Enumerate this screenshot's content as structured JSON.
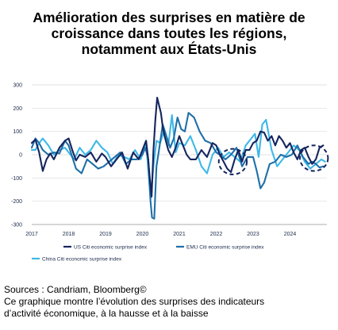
{
  "title_lines": [
    "Amélioration des surprises en matière de",
    "croissance dans toutes les régions,",
    "notamment aux États-Unis"
  ],
  "footer": {
    "sources": "Sources : Candriam, Bloomberg©",
    "note_line1": "Ce graphique montre l’évolution des surprises des indicateurs",
    "note_line2": "d’activité économique, à la hausse et à la baisse"
  },
  "colors": {
    "us": "#15255e",
    "emu": "#1f6fa8",
    "china": "#3eb8e8",
    "grid": "#d9d9d9",
    "axis_text": "#1a2a4a"
  },
  "chart_data": {
    "type": "line",
    "title": "",
    "xlabel": "",
    "ylabel": "",
    "ylim": [
      -300,
      300
    ],
    "yticks": [
      -300,
      -200,
      -100,
      0,
      100,
      200,
      300
    ],
    "xlim": [
      2017.0,
      2025.0
    ],
    "xticks": [
      2017,
      2018,
      2019,
      2020,
      2021,
      2022,
      2023,
      2024
    ],
    "grid": "horizontal",
    "legend_position": "bottom",
    "annotations": [
      {
        "shape": "dashed-circle",
        "center": [
          2022.45,
          -30
        ],
        "radius_x": 0.38,
        "radius_y": 55
      },
      {
        "shape": "dashed-circle",
        "center": [
          2024.65,
          -15
        ],
        "radius_x": 0.38,
        "radius_y": 55
      }
    ],
    "series": [
      {
        "name": "US Citi economic surprise index",
        "color_key": "us",
        "x": [
          2017.0,
          2017.1,
          2017.2,
          2017.3,
          2017.4,
          2017.5,
          2017.6,
          2017.75,
          2017.9,
          2018.0,
          2018.1,
          2018.2,
          2018.3,
          2018.45,
          2018.6,
          2018.75,
          2018.9,
          2019.0,
          2019.15,
          2019.3,
          2019.45,
          2019.6,
          2019.75,
          2019.9,
          2020.0,
          2020.1,
          2020.15,
          2020.2,
          2020.25,
          2020.3,
          2020.35,
          2020.4,
          2020.5,
          2020.55,
          2020.6,
          2020.7,
          2020.8,
          2020.9,
          2021.0,
          2021.1,
          2021.2,
          2021.3,
          2021.45,
          2021.6,
          2021.75,
          2021.9,
          2022.0,
          2022.1,
          2022.2,
          2022.3,
          2022.4,
          2022.5,
          2022.6,
          2022.7,
          2022.8,
          2022.9,
          2023.0,
          2023.1,
          2023.2,
          2023.3,
          2023.4,
          2023.5,
          2023.6,
          2023.7,
          2023.8,
          2023.9,
          2024.0,
          2024.1,
          2024.2,
          2024.3,
          2024.4,
          2024.5,
          2024.6,
          2024.7,
          2024.8,
          2024.9
        ],
        "y": [
          50,
          65,
          10,
          -70,
          -20,
          5,
          -20,
          30,
          60,
          70,
          20,
          -25,
          0,
          -10,
          10,
          -30,
          5,
          -10,
          -50,
          -20,
          10,
          -60,
          10,
          -20,
          20,
          60,
          -10,
          -100,
          -180,
          20,
          150,
          245,
          180,
          120,
          80,
          20,
          -10,
          30,
          80,
          40,
          0,
          -20,
          -20,
          20,
          -10,
          50,
          40,
          0,
          -30,
          -60,
          -75,
          -20,
          20,
          -30,
          20,
          20,
          50,
          60,
          100,
          95,
          60,
          80,
          40,
          80,
          60,
          30,
          50,
          10,
          -20,
          20,
          30,
          -10,
          -40,
          -20,
          30,
          40
        ]
      },
      {
        "name": "EMU Citi economic surprise index",
        "color_key": "emu",
        "x": [
          2017.0,
          2017.1,
          2017.2,
          2017.3,
          2017.45,
          2017.6,
          2017.75,
          2017.9,
          2018.0,
          2018.1,
          2018.2,
          2018.35,
          2018.5,
          2018.65,
          2018.8,
          2018.95,
          2019.1,
          2019.25,
          2019.4,
          2019.55,
          2019.7,
          2019.85,
          2020.0,
          2020.08,
          2020.16,
          2020.22,
          2020.26,
          2020.32,
          2020.38,
          2020.45,
          2020.55,
          2020.65,
          2020.75,
          2020.85,
          2020.95,
          2021.05,
          2021.15,
          2021.25,
          2021.4,
          2021.55,
          2021.7,
          2021.85,
          2022.0,
          2022.1,
          2022.25,
          2022.4,
          2022.55,
          2022.7,
          2022.85,
          2023.0,
          2023.1,
          2023.2,
          2023.3,
          2023.45,
          2023.6,
          2023.75,
          2023.9,
          2024.05,
          2024.2,
          2024.35,
          2024.5,
          2024.6,
          2024.7,
          2024.8,
          2024.9
        ],
        "y": [
          30,
          70,
          50,
          20,
          0,
          10,
          5,
          60,
          40,
          -10,
          -60,
          -80,
          -20,
          -40,
          -60,
          -50,
          -30,
          -10,
          10,
          -40,
          -20,
          -20,
          0,
          30,
          -20,
          -200,
          -270,
          -275,
          -50,
          20,
          130,
          80,
          30,
          70,
          160,
          110,
          100,
          180,
          160,
          100,
          60,
          50,
          10,
          0,
          -20,
          0,
          30,
          -50,
          -10,
          -10,
          -70,
          -145,
          -120,
          -40,
          -30,
          0,
          -10,
          0,
          40,
          -10,
          -40,
          -30,
          -40,
          -55,
          -50
        ]
      },
      {
        "name": "China Citi economic surprise index",
        "color_key": "china",
        "x": [
          2017.0,
          2017.1,
          2017.2,
          2017.3,
          2017.45,
          2017.6,
          2017.75,
          2017.9,
          2018.0,
          2018.15,
          2018.3,
          2018.45,
          2018.6,
          2018.75,
          2018.9,
          2019.05,
          2019.2,
          2019.35,
          2019.5,
          2019.65,
          2019.8,
          2019.95,
          2020.02,
          2020.1,
          2020.16,
          2020.22,
          2020.3,
          2020.38,
          2020.48,
          2020.58,
          2020.7,
          2020.8,
          2020.9,
          2021.0,
          2021.15,
          2021.3,
          2021.45,
          2021.6,
          2021.75,
          2021.9,
          2022.05,
          2022.2,
          2022.35,
          2022.5,
          2022.65,
          2022.8,
          2022.95,
          2023.05,
          2023.15,
          2023.25,
          2023.35,
          2023.5,
          2023.65,
          2023.8,
          2023.95,
          2024.1,
          2024.25,
          2024.4,
          2024.55,
          2024.7,
          2024.85,
          2024.95
        ],
        "y": [
          20,
          20,
          50,
          70,
          40,
          0,
          20,
          30,
          10,
          -20,
          30,
          0,
          20,
          60,
          30,
          10,
          -40,
          0,
          -10,
          -20,
          20,
          -20,
          10,
          60,
          -70,
          -190,
          -50,
          60,
          50,
          100,
          40,
          170,
          10,
          50,
          40,
          80,
          20,
          -50,
          -80,
          0,
          30,
          -10,
          10,
          -10,
          -30,
          40,
          70,
          90,
          -10,
          130,
          150,
          20,
          -50,
          -20,
          10,
          40,
          20,
          -30,
          -60,
          -40,
          -20,
          -30
        ]
      }
    ]
  }
}
